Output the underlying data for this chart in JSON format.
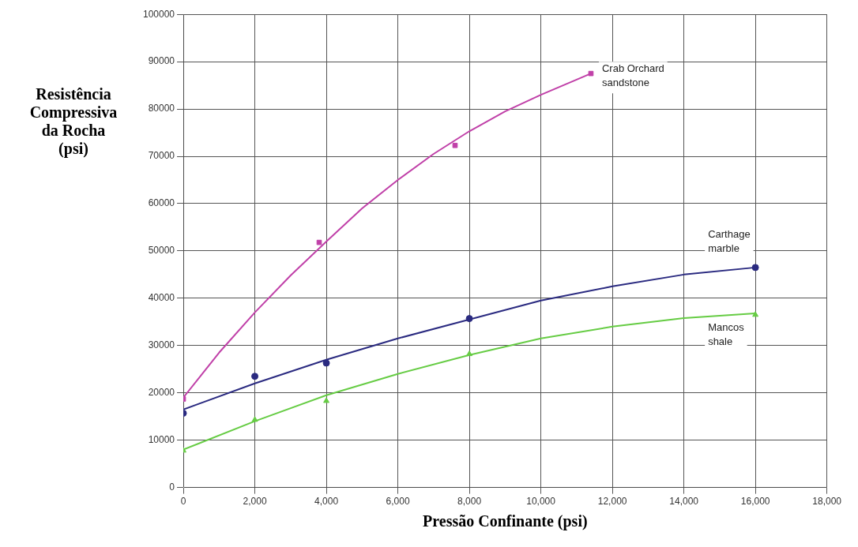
{
  "chart_data": {
    "type": "scatter",
    "xlabel": "Pressão Confinante (psi)",
    "ylabel": "Resistência\nCompressiva\nda Rocha\n(psi)",
    "xlim": [
      0,
      18000
    ],
    "xticks": [
      {
        "value": 0,
        "label": "0"
      },
      {
        "value": 2000,
        "label": "2,000"
      },
      {
        "value": 4000,
        "label": "4,000"
      },
      {
        "value": 6000,
        "label": "6,000"
      },
      {
        "value": 8000,
        "label": "8,000"
      },
      {
        "value": 10000,
        "label": "10,000"
      },
      {
        "value": 12000,
        "label": "12,000"
      },
      {
        "value": 14000,
        "label": "14,000"
      },
      {
        "value": 16000,
        "label": "16,000"
      },
      {
        "value": 18000,
        "label": "18,000"
      }
    ],
    "ylim": [
      0,
      100000
    ],
    "yticks": [
      0,
      10000,
      20000,
      30000,
      40000,
      50000,
      60000,
      70000,
      80000,
      90000,
      100000
    ],
    "grid": true,
    "legend": false,
    "series": [
      {
        "name": "Crab Orchard\nsandstone",
        "marker": "square",
        "color": "#c040a8",
        "x": [
          0,
          3800,
          7600,
          11400
        ],
        "values": [
          18700,
          51800,
          72300,
          87500
        ]
      },
      {
        "name": "Carthage\nmarble",
        "marker": "circle",
        "color": "#2a2a80",
        "x": [
          0,
          2000,
          4000,
          8000,
          16000
        ],
        "values": [
          15700,
          23500,
          26300,
          35700,
          46500
        ]
      },
      {
        "name": "Mancos\nshale",
        "marker": "triangle",
        "color": "#66cc44",
        "x": [
          0,
          2000,
          4000,
          8000,
          16000
        ],
        "values": [
          7800,
          14300,
          18300,
          28200,
          36500
        ]
      },
      {
        "type": "line",
        "color": "#c040a8",
        "x": [
          0,
          1000,
          2000,
          3000,
          4000,
          5000,
          6000,
          7000,
          8000,
          9000,
          10000,
          11000,
          11400
        ],
        "values": [
          19000,
          28500,
          37000,
          44800,
          52000,
          59000,
          65000,
          70500,
          75300,
          79500,
          83000,
          86200,
          87500
        ]
      },
      {
        "type": "line",
        "color": "#2a2a80",
        "x": [
          0,
          2000,
          4000,
          6000,
          8000,
          10000,
          12000,
          14000,
          16000
        ],
        "values": [
          16500,
          22000,
          27000,
          31500,
          35500,
          39500,
          42500,
          45000,
          46500
        ]
      },
      {
        "type": "line",
        "color": "#66cc44",
        "x": [
          0,
          2000,
          4000,
          6000,
          8000,
          10000,
          12000,
          14000,
          16000
        ],
        "values": [
          8000,
          14000,
          19500,
          24000,
          28000,
          31500,
          34000,
          35800,
          36800
        ]
      }
    ]
  }
}
